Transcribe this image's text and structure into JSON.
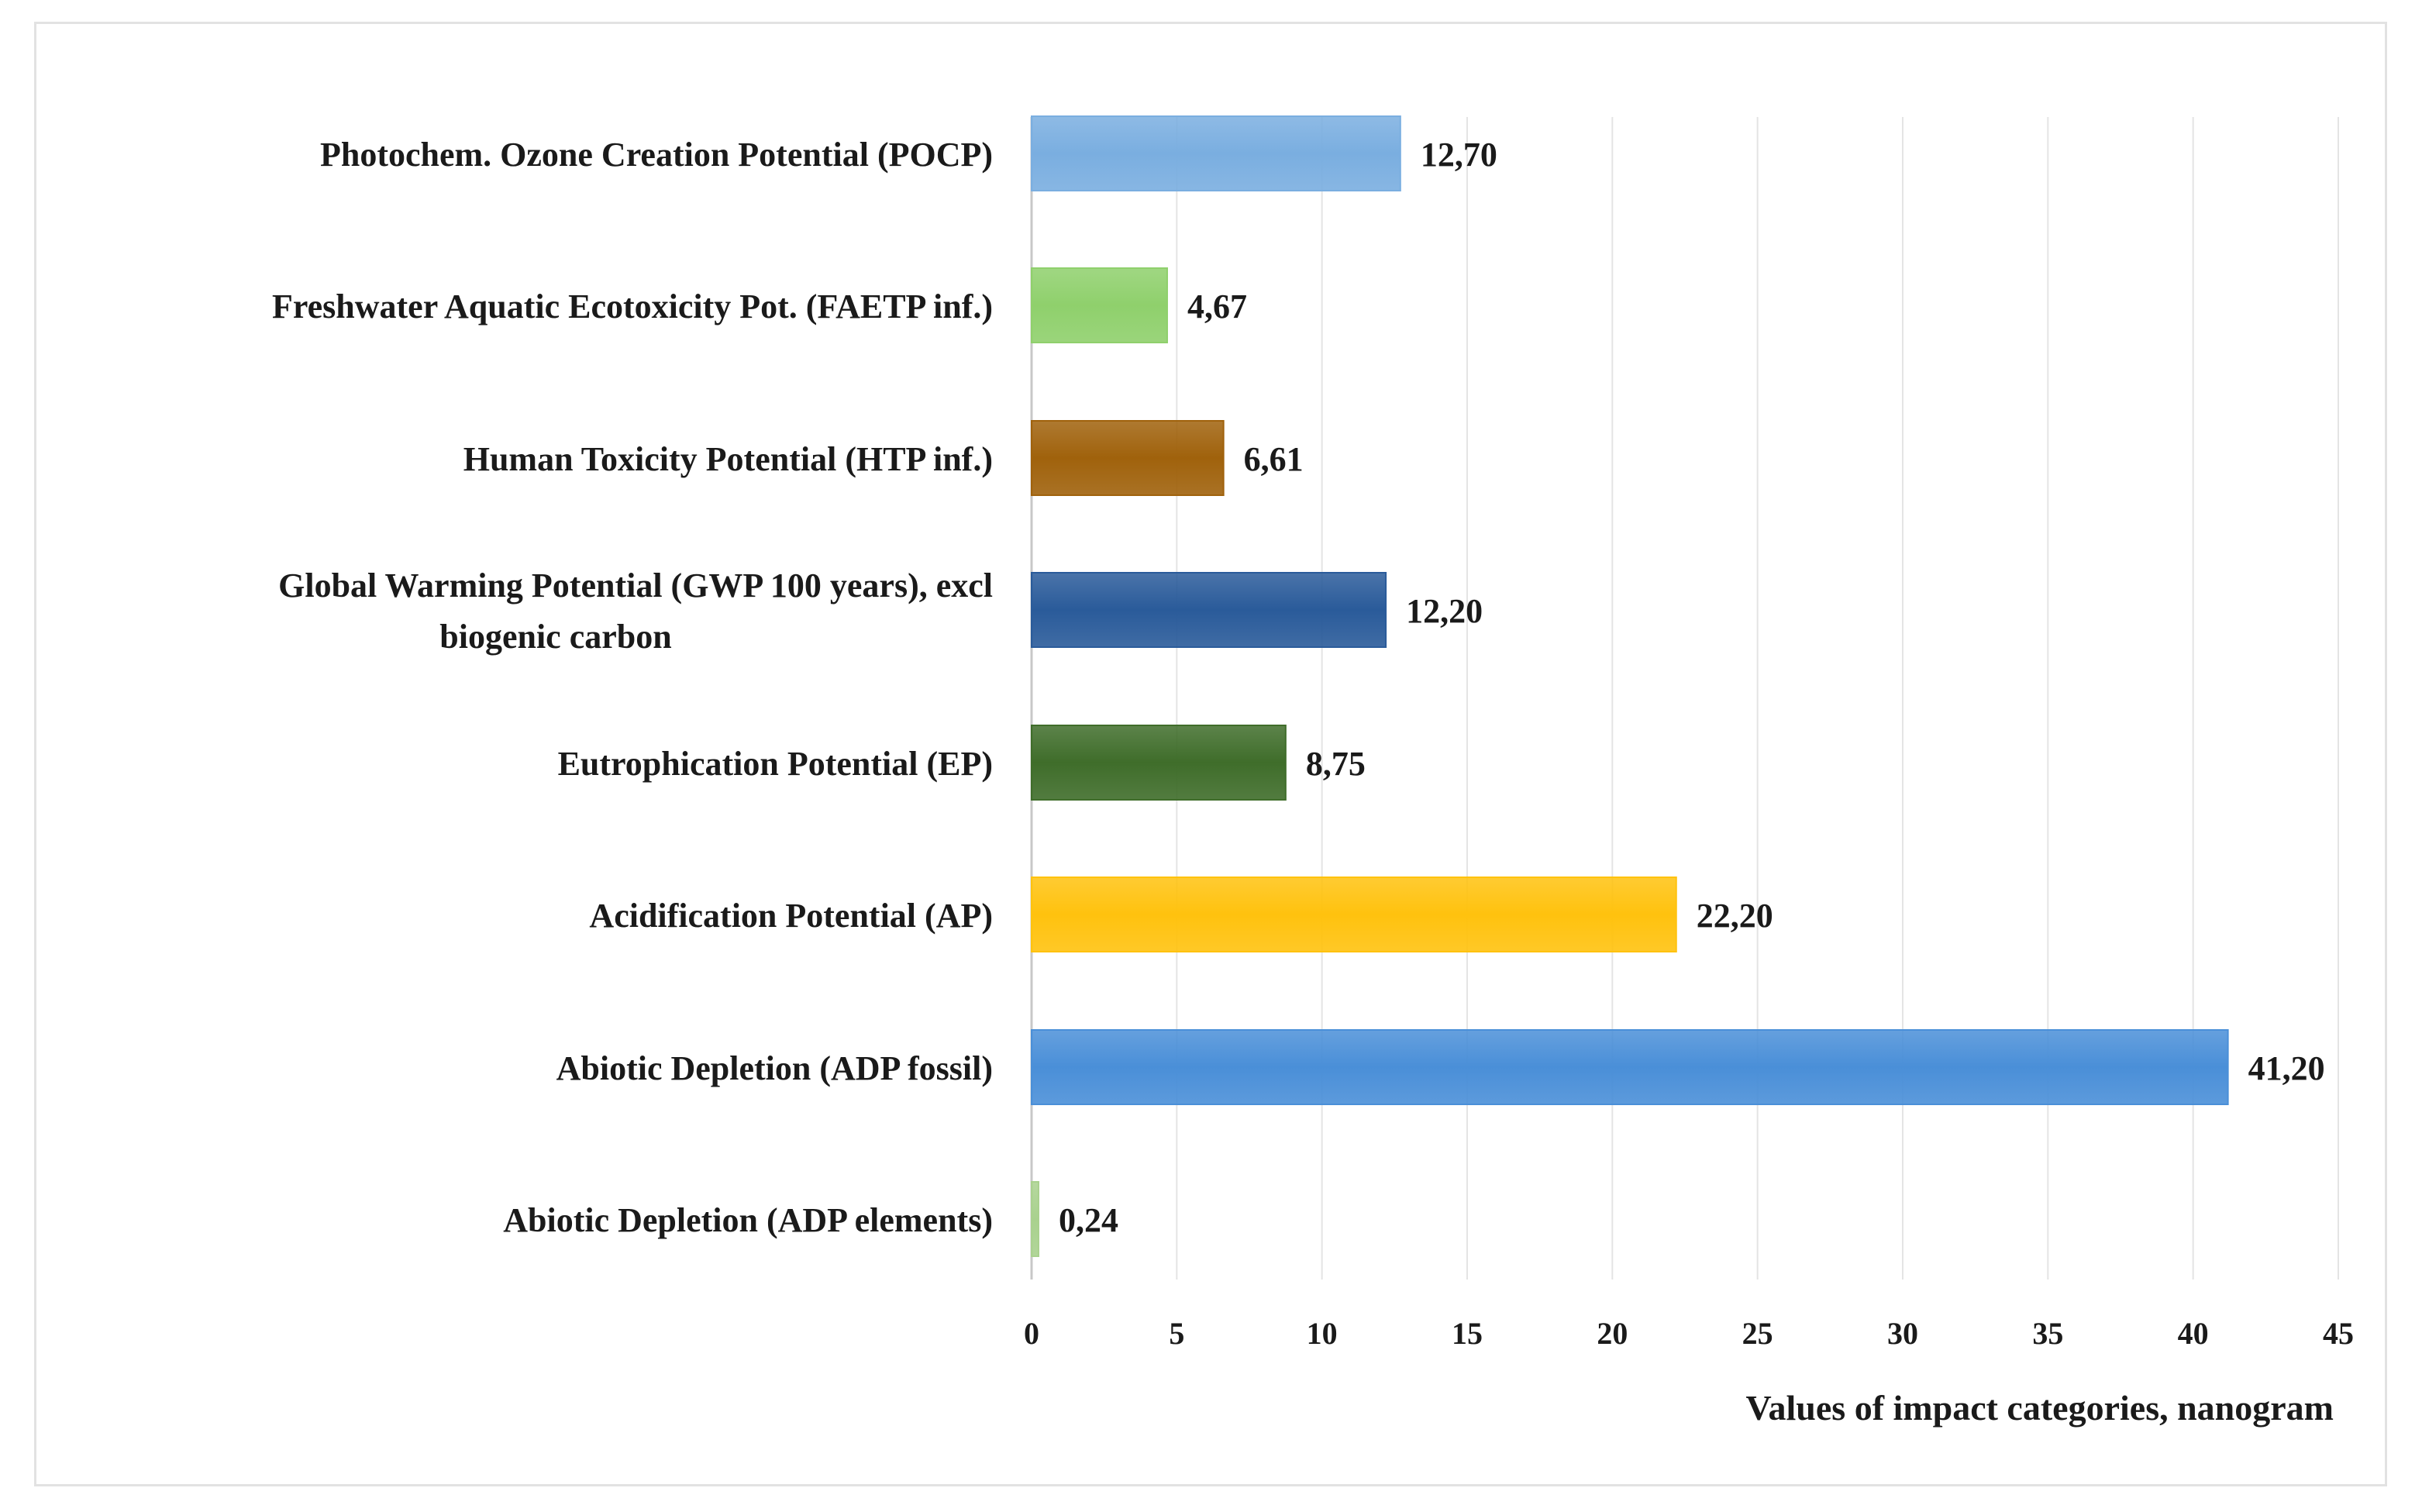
{
  "chart_data": {
    "type": "bar",
    "orientation": "horizontal",
    "categories": [
      "Photochem. Ozone Creation Potential (POCP)",
      "Freshwater Aquatic Ecotoxicity Pot. (FAETP inf.)",
      "Human Toxicity Potential (HTP inf.)",
      "Global Warming Potential (GWP 100 years), excl biogenic carbon",
      "Eutrophication Potential (EP)",
      "Acidification Potential (AP)",
      "Abiotic Depletion (ADP fossil)",
      "Abiotic Depletion (ADP elements)"
    ],
    "category_lines": [
      [
        "Photochem. Ozone Creation Potential (POCP)"
      ],
      [
        "Freshwater Aquatic Ecotoxicity Pot. (FAETP inf.)"
      ],
      [
        "Human Toxicity Potential (HTP inf.)"
      ],
      [
        "Global Warming Potential (GWP 100 years), excl",
        "biogenic carbon"
      ],
      [
        "Eutrophication Potential (EP)"
      ],
      [
        "Acidification Potential (AP)"
      ],
      [
        "Abiotic Depletion (ADP fossil)"
      ],
      [
        "Abiotic Depletion (ADP elements)"
      ]
    ],
    "values": [
      12.7,
      4.67,
      6.61,
      12.2,
      8.75,
      22.2,
      41.2,
      0.24
    ],
    "value_labels": [
      "12,70",
      "4,67",
      "6,61",
      "12,20",
      "8,75",
      "22,20",
      "41,20",
      "0,24"
    ],
    "colors": [
      "#7aaee0",
      "#8fd06c",
      "#a0620c",
      "#2a5b9a",
      "#3f6d2a",
      "#ffc20e",
      "#4a8fd8",
      "#a9d18e"
    ],
    "xlabel": "Values of impact categories, nanogram",
    "ylabel": "",
    "title": "",
    "xlim": [
      0,
      45
    ],
    "xticks": [
      0,
      5,
      10,
      15,
      20,
      25,
      30,
      35,
      40,
      45
    ],
    "xtick_labels": [
      "0",
      "5",
      "10",
      "15",
      "20",
      "25",
      "30",
      "35",
      "40",
      "45"
    ],
    "grid": "vertical",
    "legend": "none"
  }
}
